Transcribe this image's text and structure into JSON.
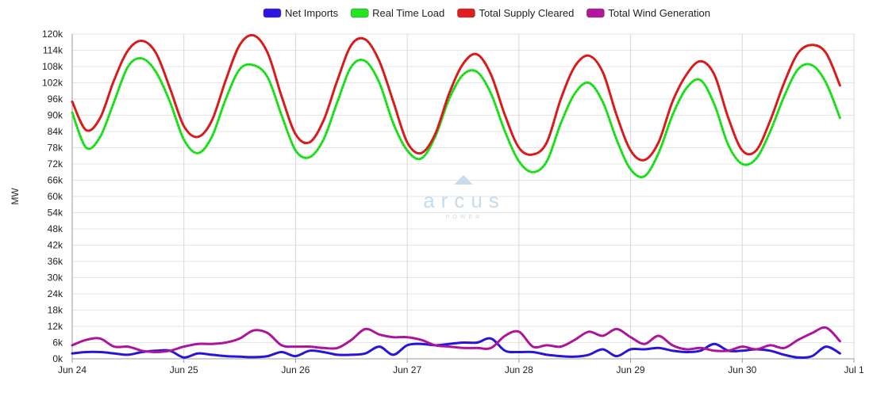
{
  "watermark": {
    "name": "arcus",
    "sub": "POWER"
  },
  "chart_data": {
    "type": "line",
    "ylabel": "MW",
    "ylim": [
      0,
      120000
    ],
    "y_ticks": [
      0,
      6000,
      12000,
      18000,
      24000,
      30000,
      36000,
      42000,
      48000,
      54000,
      60000,
      66000,
      72000,
      78000,
      84000,
      90000,
      96000,
      102000,
      108000,
      114000,
      120000
    ],
    "y_tick_labels": [
      "0k",
      "6k",
      "12k",
      "18k",
      "24k",
      "30k",
      "36k",
      "42k",
      "48k",
      "54k",
      "60k",
      "66k",
      "72k",
      "78k",
      "84k",
      "90k",
      "96k",
      "102k",
      "108k",
      "114k",
      "120k"
    ],
    "x_tick_labels": [
      "Jun 24",
      "Jun 25",
      "Jun 26",
      "Jun 27",
      "Jun 28",
      "Jun 29",
      "Jun 30",
      "Jul 1"
    ],
    "x_start": "2024-06-24T00:00",
    "x_end": "2024-07-01T00:00",
    "grid": true,
    "legend_position": "top-center",
    "series": [
      {
        "name": "Net Imports",
        "color": "#2a16e0",
        "points": [
          [
            "2024-06-24T00:00",
            2000
          ],
          [
            "2024-06-24T03:00",
            2500
          ],
          [
            "2024-06-24T06:00",
            2500
          ],
          [
            "2024-06-24T09:00",
            2000
          ],
          [
            "2024-06-24T12:00",
            1500
          ],
          [
            "2024-06-24T15:00",
            2500
          ],
          [
            "2024-06-24T18:00",
            3000
          ],
          [
            "2024-06-24T21:00",
            3000
          ],
          [
            "2024-06-25T00:00",
            500
          ],
          [
            "2024-06-25T03:00",
            2000
          ],
          [
            "2024-06-25T06:00",
            1500
          ],
          [
            "2024-06-25T09:00",
            1000
          ],
          [
            "2024-06-25T12:00",
            800
          ],
          [
            "2024-06-25T15:00",
            600
          ],
          [
            "2024-06-25T18:00",
            1000
          ],
          [
            "2024-06-25T21:00",
            2500
          ],
          [
            "2024-06-26T00:00",
            1000
          ],
          [
            "2024-06-26T03:00",
            3000
          ],
          [
            "2024-06-26T06:00",
            2500
          ],
          [
            "2024-06-26T09:00",
            1500
          ],
          [
            "2024-06-26T12:00",
            1500
          ],
          [
            "2024-06-26T15:00",
            2000
          ],
          [
            "2024-06-26T18:00",
            4500
          ],
          [
            "2024-06-26T21:00",
            1500
          ],
          [
            "2024-06-27T00:00",
            5000
          ],
          [
            "2024-06-27T03:00",
            5500
          ],
          [
            "2024-06-27T06:00",
            5000
          ],
          [
            "2024-06-27T09:00",
            5500
          ],
          [
            "2024-06-27T12:00",
            6000
          ],
          [
            "2024-06-27T15:00",
            6000
          ],
          [
            "2024-06-27T18:00",
            7500
          ],
          [
            "2024-06-27T21:00",
            3000
          ],
          [
            "2024-06-28T00:00",
            2500
          ],
          [
            "2024-06-28T03:00",
            2500
          ],
          [
            "2024-06-28T06:00",
            1500
          ],
          [
            "2024-06-28T09:00",
            1000
          ],
          [
            "2024-06-28T12:00",
            800
          ],
          [
            "2024-06-28T15:00",
            1500
          ],
          [
            "2024-06-28T18:00",
            3500
          ],
          [
            "2024-06-28T21:00",
            1000
          ],
          [
            "2024-06-29T00:00",
            3500
          ],
          [
            "2024-06-29T03:00",
            3500
          ],
          [
            "2024-06-29T06:00",
            4000
          ],
          [
            "2024-06-29T09:00",
            3000
          ],
          [
            "2024-06-29T12:00",
            2500
          ],
          [
            "2024-06-29T15:00",
            3000
          ],
          [
            "2024-06-29T18:00",
            5500
          ],
          [
            "2024-06-29T21:00",
            3000
          ],
          [
            "2024-06-30T00:00",
            3000
          ],
          [
            "2024-06-30T03:00",
            3500
          ],
          [
            "2024-06-30T06:00",
            3000
          ],
          [
            "2024-06-30T09:00",
            1500
          ],
          [
            "2024-06-30T12:00",
            500
          ],
          [
            "2024-06-30T15:00",
            1000
          ],
          [
            "2024-06-30T18:00",
            4500
          ],
          [
            "2024-06-30T21:00",
            2000
          ]
        ]
      },
      {
        "name": "Real Time Load",
        "color": "#22e622",
        "points": [
          [
            "2024-06-24T00:00",
            91000
          ],
          [
            "2024-06-24T03:00",
            78000
          ],
          [
            "2024-06-24T06:00",
            82000
          ],
          [
            "2024-06-24T09:00",
            95000
          ],
          [
            "2024-06-24T12:00",
            108000
          ],
          [
            "2024-06-24T15:00",
            111000
          ],
          [
            "2024-06-24T18:00",
            106000
          ],
          [
            "2024-06-24T21:00",
            95000
          ],
          [
            "2024-06-25T00:00",
            81000
          ],
          [
            "2024-06-25T03:00",
            76000
          ],
          [
            "2024-06-25T06:00",
            82000
          ],
          [
            "2024-06-25T09:00",
            96000
          ],
          [
            "2024-06-25T12:00",
            107000
          ],
          [
            "2024-06-25T15:00",
            108500
          ],
          [
            "2024-06-25T18:00",
            104000
          ],
          [
            "2024-06-25T21:00",
            90000
          ],
          [
            "2024-06-26T00:00",
            77000
          ],
          [
            "2024-06-26T03:00",
            74500
          ],
          [
            "2024-06-26T06:00",
            81000
          ],
          [
            "2024-06-26T09:00",
            95000
          ],
          [
            "2024-06-26T12:00",
            108000
          ],
          [
            "2024-06-26T15:00",
            110000
          ],
          [
            "2024-06-26T18:00",
            102000
          ],
          [
            "2024-06-26T21:00",
            87000
          ],
          [
            "2024-06-27T00:00",
            77000
          ],
          [
            "2024-06-27T03:00",
            74000
          ],
          [
            "2024-06-27T06:00",
            82000
          ],
          [
            "2024-06-27T09:00",
            96000
          ],
          [
            "2024-06-27T12:00",
            105000
          ],
          [
            "2024-06-27T15:00",
            106000
          ],
          [
            "2024-06-27T18:00",
            98000
          ],
          [
            "2024-06-27T21:00",
            84000
          ],
          [
            "2024-06-28T00:00",
            73000
          ],
          [
            "2024-06-28T03:00",
            69000
          ],
          [
            "2024-06-28T06:00",
            73000
          ],
          [
            "2024-06-28T09:00",
            87000
          ],
          [
            "2024-06-28T12:00",
            98000
          ],
          [
            "2024-06-28T15:00",
            102000
          ],
          [
            "2024-06-28T18:00",
            95000
          ],
          [
            "2024-06-28T21:00",
            81000
          ],
          [
            "2024-06-29T00:00",
            70000
          ],
          [
            "2024-06-29T03:00",
            67500
          ],
          [
            "2024-06-29T06:00",
            76000
          ],
          [
            "2024-06-29T09:00",
            90000
          ],
          [
            "2024-06-29T12:00",
            100000
          ],
          [
            "2024-06-29T15:00",
            103000
          ],
          [
            "2024-06-29T18:00",
            94000
          ],
          [
            "2024-06-29T21:00",
            79000
          ],
          [
            "2024-06-30T00:00",
            72000
          ],
          [
            "2024-06-30T03:00",
            74000
          ],
          [
            "2024-06-30T06:00",
            84000
          ],
          [
            "2024-06-30T09:00",
            97000
          ],
          [
            "2024-06-30T12:00",
            107000
          ],
          [
            "2024-06-30T15:00",
            108500
          ],
          [
            "2024-06-30T18:00",
            102000
          ],
          [
            "2024-06-30T21:00",
            89000
          ]
        ]
      },
      {
        "name": "Total Supply Cleared",
        "color": "#e11d1d",
        "points": [
          [
            "2024-06-24T00:00",
            95000
          ],
          [
            "2024-06-24T03:00",
            84500
          ],
          [
            "2024-06-24T06:00",
            89000
          ],
          [
            "2024-06-24T09:00",
            103000
          ],
          [
            "2024-06-24T12:00",
            114000
          ],
          [
            "2024-06-24T15:00",
            117500
          ],
          [
            "2024-06-24T18:00",
            113000
          ],
          [
            "2024-06-24T21:00",
            100000
          ],
          [
            "2024-06-25T00:00",
            86000
          ],
          [
            "2024-06-25T03:00",
            82000
          ],
          [
            "2024-06-25T06:00",
            88000
          ],
          [
            "2024-06-25T09:00",
            103000
          ],
          [
            "2024-06-25T12:00",
            116000
          ],
          [
            "2024-06-25T15:00",
            119500
          ],
          [
            "2024-06-25T18:00",
            113000
          ],
          [
            "2024-06-25T21:00",
            97000
          ],
          [
            "2024-06-26T00:00",
            83000
          ],
          [
            "2024-06-26T03:00",
            80000
          ],
          [
            "2024-06-26T06:00",
            88000
          ],
          [
            "2024-06-26T09:00",
            103000
          ],
          [
            "2024-06-26T12:00",
            116000
          ],
          [
            "2024-06-26T15:00",
            118000
          ],
          [
            "2024-06-26T18:00",
            110000
          ],
          [
            "2024-06-26T21:00",
            95000
          ],
          [
            "2024-06-27T00:00",
            80000
          ],
          [
            "2024-06-27T03:00",
            76000
          ],
          [
            "2024-06-27T06:00",
            83000
          ],
          [
            "2024-06-27T09:00",
            98000
          ],
          [
            "2024-06-27T12:00",
            109000
          ],
          [
            "2024-06-27T15:00",
            112500
          ],
          [
            "2024-06-27T18:00",
            105000
          ],
          [
            "2024-06-27T21:00",
            90000
          ],
          [
            "2024-06-28T00:00",
            78000
          ],
          [
            "2024-06-28T03:00",
            75500
          ],
          [
            "2024-06-28T06:00",
            80000
          ],
          [
            "2024-06-28T09:00",
            96000
          ],
          [
            "2024-06-28T12:00",
            108000
          ],
          [
            "2024-06-28T15:00",
            112000
          ],
          [
            "2024-06-28T18:00",
            106000
          ],
          [
            "2024-06-28T21:00",
            90000
          ],
          [
            "2024-06-29T00:00",
            77000
          ],
          [
            "2024-06-29T03:00",
            73500
          ],
          [
            "2024-06-29T06:00",
            80000
          ],
          [
            "2024-06-29T09:00",
            95000
          ],
          [
            "2024-06-29T12:00",
            105000
          ],
          [
            "2024-06-29T15:00",
            110000
          ],
          [
            "2024-06-29T18:00",
            105000
          ],
          [
            "2024-06-29T21:00",
            89000
          ],
          [
            "2024-06-30T00:00",
            77000
          ],
          [
            "2024-06-30T03:00",
            77000
          ],
          [
            "2024-06-30T06:00",
            88000
          ],
          [
            "2024-06-30T09:00",
            102000
          ],
          [
            "2024-06-30T12:00",
            113000
          ],
          [
            "2024-06-30T15:00",
            116000
          ],
          [
            "2024-06-30T18:00",
            113000
          ],
          [
            "2024-06-30T21:00",
            101000
          ]
        ]
      },
      {
        "name": "Total Wind Generation",
        "color": "#b3179f",
        "points": [
          [
            "2024-06-24T00:00",
            5000
          ],
          [
            "2024-06-24T03:00",
            7000
          ],
          [
            "2024-06-24T06:00",
            7500
          ],
          [
            "2024-06-24T09:00",
            4500
          ],
          [
            "2024-06-24T12:00",
            4500
          ],
          [
            "2024-06-24T15:00",
            3000
          ],
          [
            "2024-06-24T18:00",
            2500
          ],
          [
            "2024-06-24T21:00",
            3000
          ],
          [
            "2024-06-25T00:00",
            4500
          ],
          [
            "2024-06-25T03:00",
            5500
          ],
          [
            "2024-06-25T06:00",
            5500
          ],
          [
            "2024-06-25T09:00",
            6000
          ],
          [
            "2024-06-25T12:00",
            7500
          ],
          [
            "2024-06-25T15:00",
            10500
          ],
          [
            "2024-06-25T18:00",
            9500
          ],
          [
            "2024-06-25T21:00",
            5000
          ],
          [
            "2024-06-26T00:00",
            4500
          ],
          [
            "2024-06-26T03:00",
            4500
          ],
          [
            "2024-06-26T06:00",
            4000
          ],
          [
            "2024-06-26T09:00",
            4000
          ],
          [
            "2024-06-26T12:00",
            7000
          ],
          [
            "2024-06-26T15:00",
            11000
          ],
          [
            "2024-06-26T18:00",
            9000
          ],
          [
            "2024-06-26T21:00",
            8000
          ],
          [
            "2024-06-27T00:00",
            8000
          ],
          [
            "2024-06-27T03:00",
            7000
          ],
          [
            "2024-06-27T06:00",
            5000
          ],
          [
            "2024-06-27T09:00",
            4500
          ],
          [
            "2024-06-27T12:00",
            4000
          ],
          [
            "2024-06-27T15:00",
            4000
          ],
          [
            "2024-06-27T18:00",
            4000
          ],
          [
            "2024-06-27T21:00",
            8500
          ],
          [
            "2024-06-28T00:00",
            10000
          ],
          [
            "2024-06-28T03:00",
            4500
          ],
          [
            "2024-06-28T06:00",
            5000
          ],
          [
            "2024-06-28T09:00",
            4500
          ],
          [
            "2024-06-28T12:00",
            7000
          ],
          [
            "2024-06-28T15:00",
            10000
          ],
          [
            "2024-06-28T18:00",
            8500
          ],
          [
            "2024-06-28T21:00",
            11000
          ],
          [
            "2024-06-29T00:00",
            8000
          ],
          [
            "2024-06-29T03:00",
            5500
          ],
          [
            "2024-06-29T06:00",
            8500
          ],
          [
            "2024-06-29T09:00",
            5000
          ],
          [
            "2024-06-29T12:00",
            3500
          ],
          [
            "2024-06-29T15:00",
            4000
          ],
          [
            "2024-06-29T18:00",
            3000
          ],
          [
            "2024-06-29T21:00",
            3000
          ],
          [
            "2024-06-30T00:00",
            4500
          ],
          [
            "2024-06-30T03:00",
            3500
          ],
          [
            "2024-06-30T06:00",
            5000
          ],
          [
            "2024-06-30T09:00",
            4000
          ],
          [
            "2024-06-30T12:00",
            7000
          ],
          [
            "2024-06-30T15:00",
            9500
          ],
          [
            "2024-06-30T18:00",
            11500
          ],
          [
            "2024-06-30T21:00",
            6500
          ]
        ]
      }
    ]
  }
}
